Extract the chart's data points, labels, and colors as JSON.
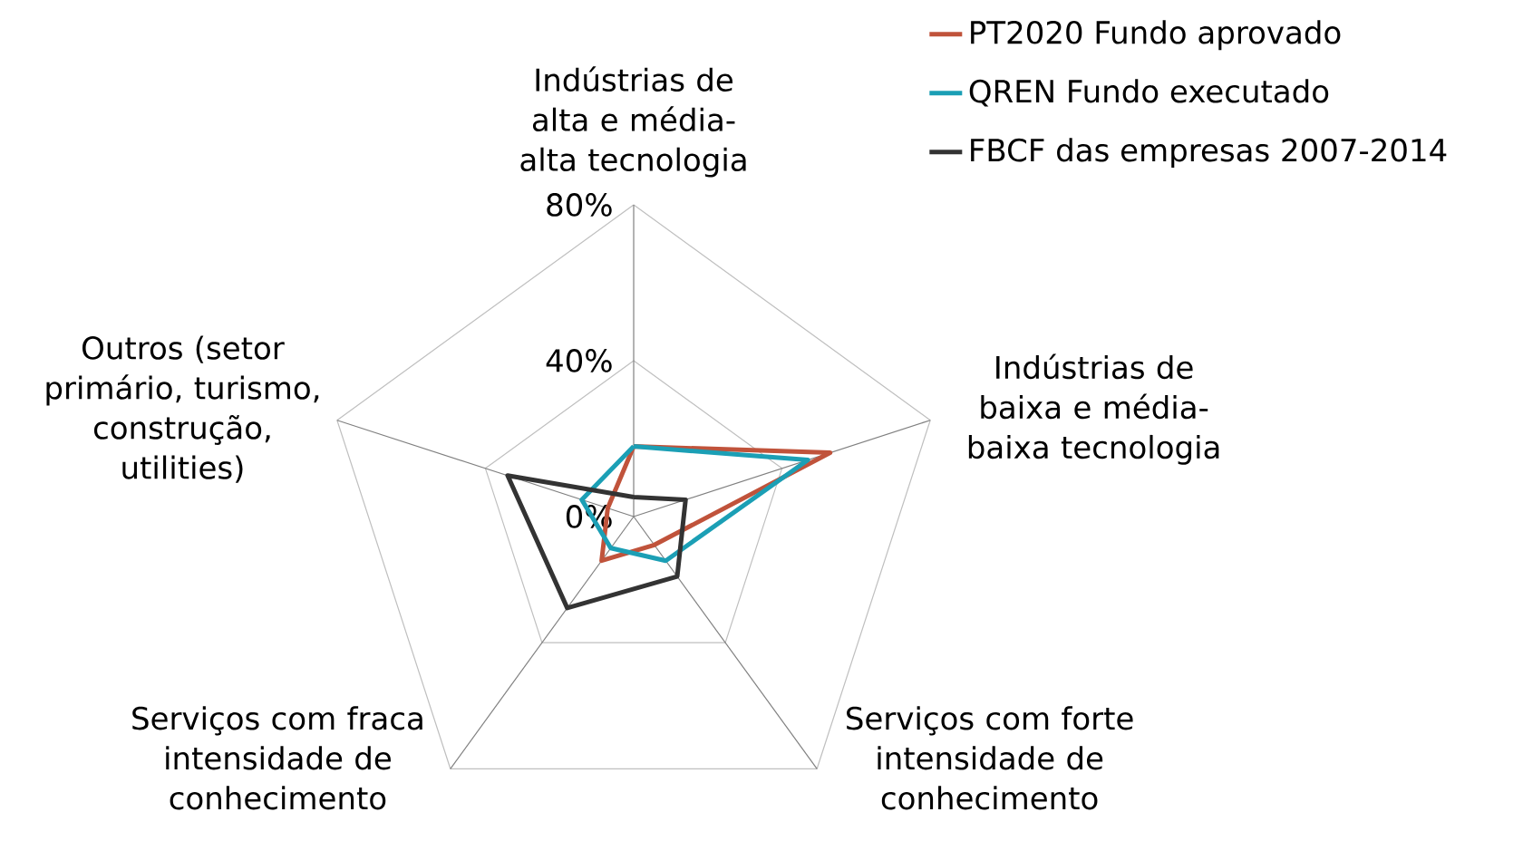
{
  "chart_data": {
    "type": "radar",
    "categories": [
      "Indústrias de alta e média-alta tecnologia",
      "Indústrias de baixa e média-baixa tecnologia",
      "Serviços com forte intensidade de conhecimento",
      "Serviços com fraca intensidade de conhecimento",
      "Outros (setor primário, turismo, construção, utilities)"
    ],
    "series": [
      {
        "name": "PT2020 Fundo aprovado",
        "color": "#c0533b",
        "values": [
          18,
          53,
          9,
          14,
          7
        ]
      },
      {
        "name": "QREN Fundo executado",
        "color": "#1b9fb5",
        "values": [
          18,
          47,
          14,
          10,
          14
        ]
      },
      {
        "name": "FBCF das empresas 2007-2014",
        "color": "#333333",
        "values": [
          5,
          14,
          19,
          29,
          34
        ]
      }
    ],
    "ylim": [
      0,
      80
    ],
    "yticks": [
      {
        "value": 0,
        "label": "0%"
      },
      {
        "value": 40,
        "label": "40%"
      },
      {
        "value": 80,
        "label": "80%"
      }
    ],
    "grid": true,
    "legend": "top right"
  }
}
